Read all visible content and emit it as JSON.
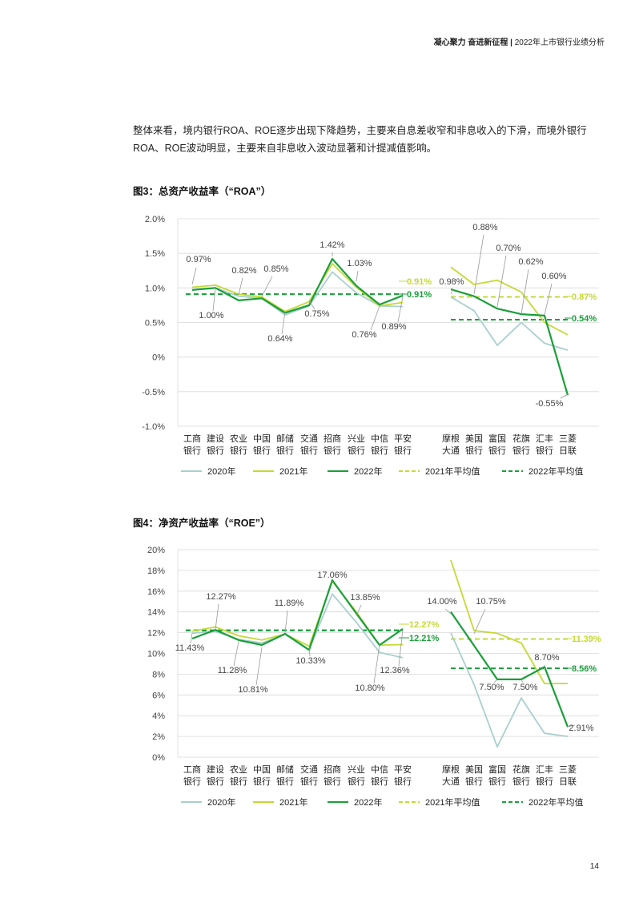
{
  "header": {
    "slogan": "凝心聚力 奋进新征程",
    "separator": "|",
    "report": "2022年上市银行业绩分析"
  },
  "intro_text": "整体来看，境内银行ROA、ROE逐步出现下降趋势，主要来自息差收窄和非息收入的下滑，而境外银行ROA、ROE波动明显，主要来自非息收入波动显著和计提减值影响。",
  "page_number": "14",
  "colors": {
    "y2020": "#a9cfcf",
    "y2021": "#c5d934",
    "y2022": "#1a9f3a",
    "grid": "#d9d9d9",
    "text": "#444444"
  },
  "chart_data": [
    {
      "id": "roa",
      "type": "line",
      "title": "图3：总资产收益率（“ROA”）",
      "categories": [
        [
          "工商",
          "银行"
        ],
        [
          "建设",
          "银行"
        ],
        [
          "农业",
          "银行"
        ],
        [
          "中国",
          "银行"
        ],
        [
          "邮储",
          "银行"
        ],
        [
          "交通",
          "银行"
        ],
        [
          "招商",
          "银行"
        ],
        [
          "兴业",
          "银行"
        ],
        [
          "中信",
          "银行"
        ],
        [
          "平安",
          "银行"
        ],
        [
          "摩根",
          "大通"
        ],
        [
          "美国",
          "银行"
        ],
        [
          "富国",
          "银行"
        ],
        [
          "花旗",
          "银行"
        ],
        [
          "汇丰",
          "银行"
        ],
        [
          "三菱",
          "日联"
        ]
      ],
      "ylim": [
        -1.0,
        2.0
      ],
      "yticks": [
        -1.0,
        -0.5,
        0.0,
        0.5,
        1.0,
        1.5,
        2.0
      ],
      "yticklabels": [
        "-1.0%",
        "-0.5%",
        "0%",
        "0.5%",
        "1.0%",
        "1.5%",
        "2.0%"
      ],
      "series": [
        {
          "name": "2020年",
          "key": "y2020",
          "values": [
            0.97,
            1.0,
            0.88,
            0.85,
            0.61,
            0.74,
            1.23,
            0.93,
            0.74,
            0.73,
            0.87,
            0.67,
            0.17,
            0.5,
            0.2,
            0.1
          ]
        },
        {
          "name": "2021年",
          "key": "y2021",
          "values": [
            1.01,
            1.04,
            0.91,
            0.87,
            0.66,
            0.8,
            1.35,
            1.01,
            0.74,
            0.79,
            1.3,
            1.05,
            1.11,
            0.94,
            0.5,
            0.32
          ]
        },
        {
          "name": "2022年",
          "key": "y2022",
          "values": [
            0.97,
            1.0,
            0.82,
            0.85,
            0.64,
            0.75,
            1.42,
            1.03,
            0.76,
            0.89,
            0.98,
            0.88,
            0.7,
            0.62,
            0.6,
            -0.55
          ]
        }
      ],
      "averages": [
        {
          "name": "2021年平均值",
          "key": "y2021",
          "value": 0.91,
          "label": "0.91%",
          "group": "domestic"
        },
        {
          "name": "2022年平均值",
          "key": "y2022",
          "value": 0.91,
          "label": "0.91%",
          "group": "domestic"
        },
        {
          "name": "2021年平均值",
          "key": "y2021",
          "value": 0.87,
          "label": "0.87%",
          "group": "foreign"
        },
        {
          "name": "2022年平均值",
          "key": "y2022",
          "value": 0.54,
          "label": "0.54%",
          "group": "foreign"
        }
      ],
      "annotations": [
        "0.97%",
        "1.00%",
        "0.82%",
        "0.85%",
        "0.64%",
        "0.75%",
        "1.42%",
        "1.03%",
        "0.76%",
        "0.89%",
        "0.98%",
        "0.88%",
        "0.70%",
        "0.62%",
        "0.60%",
        "-0.55%"
      ],
      "legend": [
        "2020年",
        "2021年",
        "2022年",
        "2021年平均值",
        "2022年平均值"
      ]
    },
    {
      "id": "roe",
      "type": "line",
      "title": "图4：净资产收益率（“ROE”）",
      "categories": [
        [
          "工商",
          "银行"
        ],
        [
          "建设",
          "银行"
        ],
        [
          "农业",
          "银行"
        ],
        [
          "中国",
          "银行"
        ],
        [
          "邮储",
          "银行"
        ],
        [
          "交通",
          "银行"
        ],
        [
          "招商",
          "银行"
        ],
        [
          "兴业",
          "银行"
        ],
        [
          "中信",
          "银行"
        ],
        [
          "平安",
          "银行"
        ],
        [
          "摩根",
          "大通"
        ],
        [
          "美国",
          "银行"
        ],
        [
          "富国",
          "银行"
        ],
        [
          "花旗",
          "银行"
        ],
        [
          "汇丰",
          "银行"
        ],
        [
          "三菱",
          "日联"
        ]
      ],
      "ylim": [
        0,
        20
      ],
      "yticks": [
        0,
        2,
        4,
        6,
        8,
        10,
        12,
        14,
        16,
        18,
        20
      ],
      "yticklabels": [
        "0%",
        "2%",
        "4%",
        "6%",
        "8%",
        "10%",
        "12%",
        "14%",
        "16%",
        "18%",
        "20%"
      ],
      "series": [
        {
          "name": "2020年",
          "key": "y2020",
          "values": [
            11.95,
            12.12,
            11.35,
            11.0,
            11.84,
            10.37,
            15.73,
            13.0,
            10.1,
            9.58,
            11.98,
            7.0,
            1.0,
            5.7,
            2.3,
            2.0
          ]
        },
        {
          "name": "2021年",
          "key": "y2021",
          "values": [
            12.15,
            12.55,
            11.7,
            11.3,
            11.86,
            10.7,
            16.96,
            14.0,
            10.8,
            10.85,
            19.0,
            12.2,
            11.94,
            11.0,
            7.1,
            7.1
          ]
        },
        {
          "name": "2022年",
          "key": "y2022",
          "values": [
            11.43,
            12.27,
            11.28,
            10.81,
            11.89,
            10.33,
            17.06,
            13.85,
            10.8,
            12.36,
            14.0,
            10.75,
            7.5,
            7.5,
            8.7,
            2.91
          ]
        }
      ],
      "averages": [
        {
          "name": "2021年平均值",
          "key": "y2021",
          "value": 12.27,
          "label": "12.27%",
          "group": "domestic"
        },
        {
          "name": "2022年平均值",
          "key": "y2022",
          "value": 12.21,
          "label": "12.21%",
          "group": "domestic"
        },
        {
          "name": "2021年平均值",
          "key": "y2021",
          "value": 11.39,
          "label": "11.39%",
          "group": "foreign"
        },
        {
          "name": "2022年平均值",
          "key": "y2022",
          "value": 8.56,
          "label": "8.56%",
          "group": "foreign"
        }
      ],
      "annotations": [
        "11.43%",
        "12.27%",
        "11.28%",
        "10.81%",
        "11.89%",
        "10.33%",
        "17.06%",
        "13.85%",
        "10.80%",
        "12.36%",
        "14.00%",
        "10.75%",
        "7.50%",
        "7.50%",
        "8.70%",
        "2.91%"
      ],
      "legend": [
        "2020年",
        "2021年",
        "2022年",
        "2021年平均值",
        "2022年平均值"
      ]
    }
  ]
}
